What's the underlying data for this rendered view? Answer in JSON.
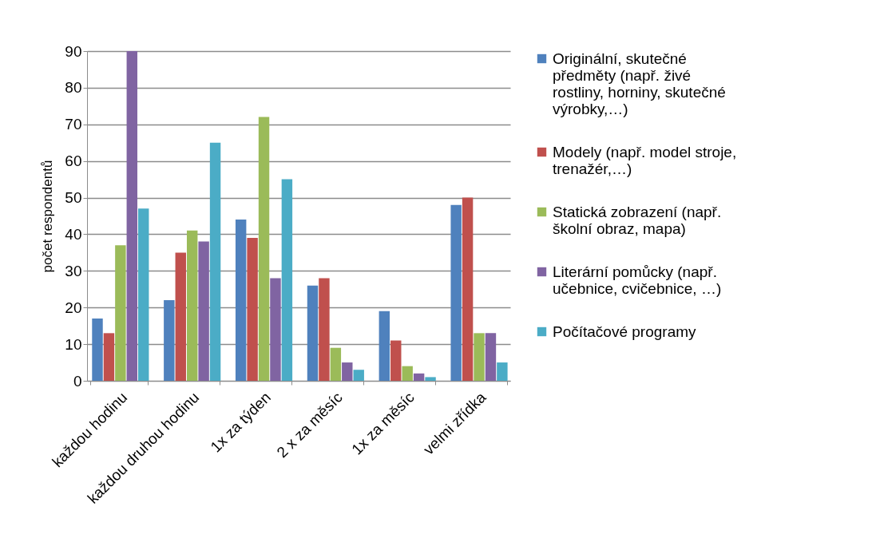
{
  "chart_data": {
    "type": "bar",
    "ylabel": "počet respondentů",
    "categories": [
      "každou  hodinu",
      "každou druhou hodinu",
      "1x za týden",
      "2 x za měsíc",
      "1x za měsíc",
      "velmi zřídka"
    ],
    "series": [
      {
        "name": "Originální, skutečné předměty (např. živé rostliny, horniny, skutečné výrobky,…)",
        "color": "#4f81bd",
        "values": [
          17,
          22,
          44,
          26,
          19,
          48
        ]
      },
      {
        "name": "Modely (např. model stroje, trenažér,…)",
        "color": "#c0504d",
        "values": [
          13,
          35,
          39,
          28,
          11,
          50
        ]
      },
      {
        "name": "Statická zobrazení (např. školní obraz, mapa)",
        "color": "#9bbb59",
        "values": [
          37,
          41,
          72,
          9,
          4,
          13
        ]
      },
      {
        "name": "Literární pomůcky (např. učebnice, cvičebnice, …)",
        "color": "#8064a2",
        "values": [
          90,
          38,
          28,
          5,
          2,
          13
        ]
      },
      {
        "name": "Počítačové programy",
        "color": "#4bacc6",
        "values": [
          47,
          65,
          55,
          3,
          1,
          5
        ]
      }
    ],
    "ylim": [
      0,
      90
    ],
    "yticks": [
      0,
      10,
      20,
      30,
      40,
      50,
      60,
      70,
      80,
      90
    ],
    "grid": "y",
    "legend": "right"
  }
}
